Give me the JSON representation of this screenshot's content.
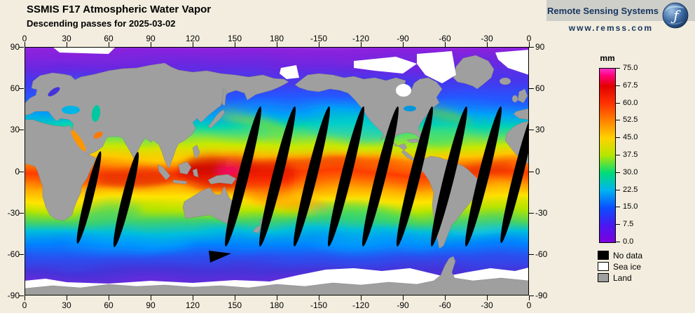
{
  "header": {
    "title": "SSMIS F17 Atmospheric Water Vapor",
    "subtitle": "Descending passes for 2025-03-02"
  },
  "logo": {
    "name": "Remote Sensing Systems",
    "url": "www.remss.com"
  },
  "axes": {
    "lon_ticks": [
      "0",
      "30",
      "60",
      "90",
      "120",
      "150",
      "180",
      "-150",
      "-120",
      "-90",
      "-60",
      "-30",
      "0"
    ],
    "lat_ticks": [
      "90",
      "60",
      "30",
      "0",
      "-30",
      "-60",
      "-90"
    ]
  },
  "colorbar": {
    "unit": "mm",
    "max": 75,
    "min": 0,
    "ticks": [
      "75.0",
      "67.5",
      "60.0",
      "52.5",
      "45.0",
      "37.5",
      "30.0",
      "22.5",
      "15.0",
      "7.5",
      "0.0"
    ],
    "stops": [
      {
        "value": 0.0,
        "color": "#7d00dd"
      },
      {
        "value": 7.5,
        "color": "#4818f0"
      },
      {
        "value": 15.0,
        "color": "#0a50ff"
      },
      {
        "value": 22.5,
        "color": "#00b4f0"
      },
      {
        "value": 30.0,
        "color": "#00dc78"
      },
      {
        "value": 37.5,
        "color": "#b4e600"
      },
      {
        "value": 45.0,
        "color": "#ffd200"
      },
      {
        "value": 52.5,
        "color": "#ff8200"
      },
      {
        "value": 60.0,
        "color": "#ff3200"
      },
      {
        "value": 67.5,
        "color": "#e10000"
      },
      {
        "value": 72.0,
        "color": "#ff0078"
      },
      {
        "value": 75.0,
        "color": "#ff32c8"
      }
    ]
  },
  "legend": {
    "items": [
      {
        "label": "No data",
        "color": "#000000"
      },
      {
        "label": "Sea ice",
        "color": "#ffffff"
      },
      {
        "label": "Land",
        "color": "#9f9f9f"
      }
    ]
  },
  "theme": {
    "background": "#f2edde",
    "land_gray": "#9f9f9f",
    "logo_navy": "#17355f",
    "no_data_black": "#000000",
    "sea_ice_white": "#ffffff"
  },
  "chart_data": {
    "type": "heatmap",
    "title": "SSMIS F17 Atmospheric Water Vapor",
    "subtitle": "Descending passes for 2025-03-02",
    "units": "mm",
    "value_range": [
      0,
      75
    ],
    "colorbar_ticks": [
      75.0,
      67.5,
      60.0,
      52.5,
      45.0,
      37.5,
      30.0,
      22.5,
      15.0,
      7.5,
      0.0
    ],
    "x_axis_longitude": [
      0,
      30,
      60,
      90,
      120,
      150,
      180,
      -150,
      -120,
      -90,
      -60,
      -30,
      0
    ],
    "y_axis_latitude": [
      90,
      60,
      30,
      0,
      -30,
      -60,
      -90
    ],
    "special_categories": [
      "No data",
      "Sea ice",
      "Land"
    ],
    "description": "Global map of columnar atmospheric water vapor (mm): high values 45-75mm in tropical band, mid values 15-35mm in mid-latitudes, low values 0-10mm at high latitudes; black diagonal lens-shaped gaps between descending satellite swaths; gray continents; white sea ice at poles."
  }
}
